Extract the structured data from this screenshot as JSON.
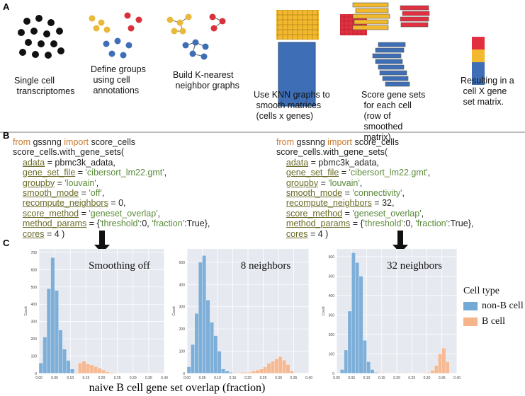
{
  "panel_a": {
    "label": "A",
    "steps": [
      "Single cell transcriptomes",
      "Define groups using cell annotations",
      "Build K-nearest neighbor graphs",
      "Use KNN graphs to smooth matrices (cells x genes)",
      "Score gene sets for each cell (row of smoothed matrix)",
      "Resulting in a cell X gene set matrix."
    ]
  },
  "panel_b": {
    "label": "B",
    "left": [
      "from gssnng import score_cells",
      "score_cells.with_gene_sets(",
      "    adata = pbmc3k_adata,",
      "    gene_set_file = 'cibersort_lm22.gmt',",
      "    groupby = 'louvain',",
      "    smooth_mode = 'off',",
      "    recompute_neighbors = 0,",
      "    score_method = 'geneset_overlap',",
      "    method_params = {'threshold':0, 'fraction':True},",
      "    cores = 4 )"
    ],
    "right": [
      "from gssnng import score_cells",
      "score_cells.with_gene_sets(",
      "    adata = pbmc3k_adata,",
      "    gene_set_file = 'cibersort_lm22.gmt',",
      "    groupby = 'louvain',",
      "    smooth_mode = 'connectivity',",
      "    recompute_neighbors = 32,",
      "    score_method = 'geneset_overlap',",
      "    method_params = {'threshold':0, 'fraction':True},",
      "    cores = 4 )"
    ]
  },
  "panel_c": {
    "label": "C",
    "xlabel": "naive B cell gene set overlap (fraction)",
    "legend": {
      "title": "Cell type",
      "items": [
        {
          "name": "non-B cell",
          "color": "#72a9d6"
        },
        {
          "name": "B cell",
          "color": "#f6b48a"
        }
      ]
    }
  },
  "chart_data": [
    {
      "type": "histogram",
      "annotation": "Smoothing off",
      "ylabel": "Count",
      "bins": [
        0,
        0.0125,
        0.025,
        0.0375,
        0.05,
        0.0625,
        0.075,
        0.0875,
        0.1,
        0.1125,
        0.125,
        0.1375,
        0.15,
        0.1625,
        0.175,
        0.1875,
        0.2,
        0.2125,
        0.225,
        0.2375,
        0.25,
        0.2625,
        0.275,
        0.2875,
        0.3,
        0.3125,
        0.325,
        0.3375,
        0.35,
        0.3625,
        0.375,
        0.3875,
        0.4
      ],
      "series": [
        {
          "values": [
            60,
            210,
            490,
            670,
            480,
            250,
            140,
            75,
            25,
            0,
            0,
            0,
            0,
            0,
            0,
            0,
            0,
            0,
            0,
            0,
            0,
            0,
            0,
            0,
            0,
            0,
            0,
            0,
            0,
            0,
            0,
            0
          ]
        },
        {
          "values": [
            0,
            0,
            0,
            0,
            0,
            0,
            0,
            0,
            0,
            5,
            60,
            70,
            55,
            50,
            40,
            30,
            20,
            10,
            5,
            3,
            0,
            0,
            0,
            0,
            0,
            0,
            0,
            0,
            0,
            0,
            0,
            0
          ]
        }
      ],
      "xlim": [
        0,
        0.4
      ],
      "xticks": [
        {
          "value": 0,
          "label": "0.00"
        },
        {
          "value": 0.05,
          "label": "0.05"
        },
        {
          "value": 0.1,
          "label": "0.10"
        },
        {
          "value": 0.15,
          "label": "0.15"
        },
        {
          "value": 0.2,
          "label": "0.20"
        },
        {
          "value": 0.25,
          "label": "0.25"
        },
        {
          "value": 0.3,
          "label": "0.30"
        },
        {
          "value": 0.35,
          "label": "0.35"
        },
        {
          "value": 0.4,
          "label": "0.40"
        }
      ],
      "ylim": [
        0,
        720
      ],
      "yticks": [
        0,
        100,
        200,
        300,
        400,
        500,
        600,
        700
      ],
      "grid": true
    },
    {
      "type": "histogram",
      "annotation": "8 neighbors",
      "ylabel": "Count",
      "bins": [
        0,
        0.0125,
        0.025,
        0.0375,
        0.05,
        0.0625,
        0.075,
        0.0875,
        0.1,
        0.1125,
        0.125,
        0.1375,
        0.15,
        0.1625,
        0.175,
        0.1875,
        0.2,
        0.2125,
        0.225,
        0.2375,
        0.25,
        0.2625,
        0.275,
        0.2875,
        0.3,
        0.3125,
        0.325,
        0.3375,
        0.35,
        0.3625,
        0.375,
        0.3875,
        0.4
      ],
      "series": [
        {
          "values": [
            30,
            130,
            270,
            500,
            530,
            330,
            230,
            170,
            100,
            20,
            10,
            5,
            0,
            0,
            0,
            0,
            0,
            0,
            0,
            0,
            0,
            0,
            0,
            0,
            0,
            0,
            0,
            0,
            0,
            0,
            0,
            0
          ]
        },
        {
          "values": [
            0,
            0,
            0,
            0,
            0,
            0,
            0,
            0,
            0,
            0,
            0,
            0,
            3,
            3,
            5,
            5,
            5,
            10,
            15,
            20,
            30,
            45,
            55,
            65,
            75,
            60,
            40,
            10,
            0,
            0,
            0,
            0
          ]
        }
      ],
      "xlim": [
        0,
        0.4
      ],
      "xticks": [
        {
          "value": 0,
          "label": "0.00"
        },
        {
          "value": 0.05,
          "label": "0.05"
        },
        {
          "value": 0.1,
          "label": "0.10"
        },
        {
          "value": 0.15,
          "label": "0.15"
        },
        {
          "value": 0.2,
          "label": "0.20"
        },
        {
          "value": 0.25,
          "label": "0.25"
        },
        {
          "value": 0.3,
          "label": "0.30"
        },
        {
          "value": 0.35,
          "label": "0.35"
        },
        {
          "value": 0.4,
          "label": "0.40"
        }
      ],
      "ylim": [
        0,
        560
      ],
      "yticks": [
        0,
        100,
        200,
        300,
        400,
        500
      ],
      "grid": true
    },
    {
      "type": "histogram",
      "annotation": "32 neighbors",
      "ylabel": "Count",
      "bins": [
        0,
        0.0125,
        0.025,
        0.0375,
        0.05,
        0.0625,
        0.075,
        0.0875,
        0.1,
        0.1125,
        0.125,
        0.1375,
        0.15,
        0.1625,
        0.175,
        0.1875,
        0.2,
        0.2125,
        0.225,
        0.2375,
        0.25,
        0.2625,
        0.275,
        0.2875,
        0.3,
        0.3125,
        0.325,
        0.3375,
        0.35,
        0.3625,
        0.375,
        0.3875,
        0.4
      ],
      "series": [
        {
          "values": [
            0,
            20,
            120,
            320,
            620,
            570,
            500,
            170,
            60,
            20,
            5,
            0,
            0,
            0,
            0,
            0,
            0,
            0,
            0,
            0,
            0,
            0,
            0,
            0,
            0,
            0,
            0,
            0,
            0,
            0,
            0,
            0
          ]
        },
        {
          "values": [
            0,
            0,
            0,
            0,
            0,
            0,
            0,
            0,
            0,
            0,
            0,
            3,
            3,
            0,
            0,
            0,
            3,
            0,
            3,
            0,
            0,
            0,
            0,
            3,
            5,
            15,
            40,
            100,
            130,
            60,
            0,
            0
          ]
        }
      ],
      "xlim": [
        0,
        0.4
      ],
      "xticks": [
        {
          "value": 0,
          "label": "0.00"
        },
        {
          "value": 0.05,
          "label": "0.05"
        },
        {
          "value": 0.1,
          "label": "0.10"
        },
        {
          "value": 0.15,
          "label": "0.15"
        },
        {
          "value": 0.2,
          "label": "0.20"
        },
        {
          "value": 0.25,
          "label": "0.25"
        },
        {
          "value": 0.3,
          "label": "0.30"
        },
        {
          "value": 0.35,
          "label": "0.35"
        },
        {
          "value": 0.4,
          "label": "0.40"
        }
      ],
      "ylim": [
        0,
        640
      ],
      "yticks": [
        0,
        100,
        200,
        300,
        400,
        500,
        600
      ],
      "grid": true
    }
  ]
}
